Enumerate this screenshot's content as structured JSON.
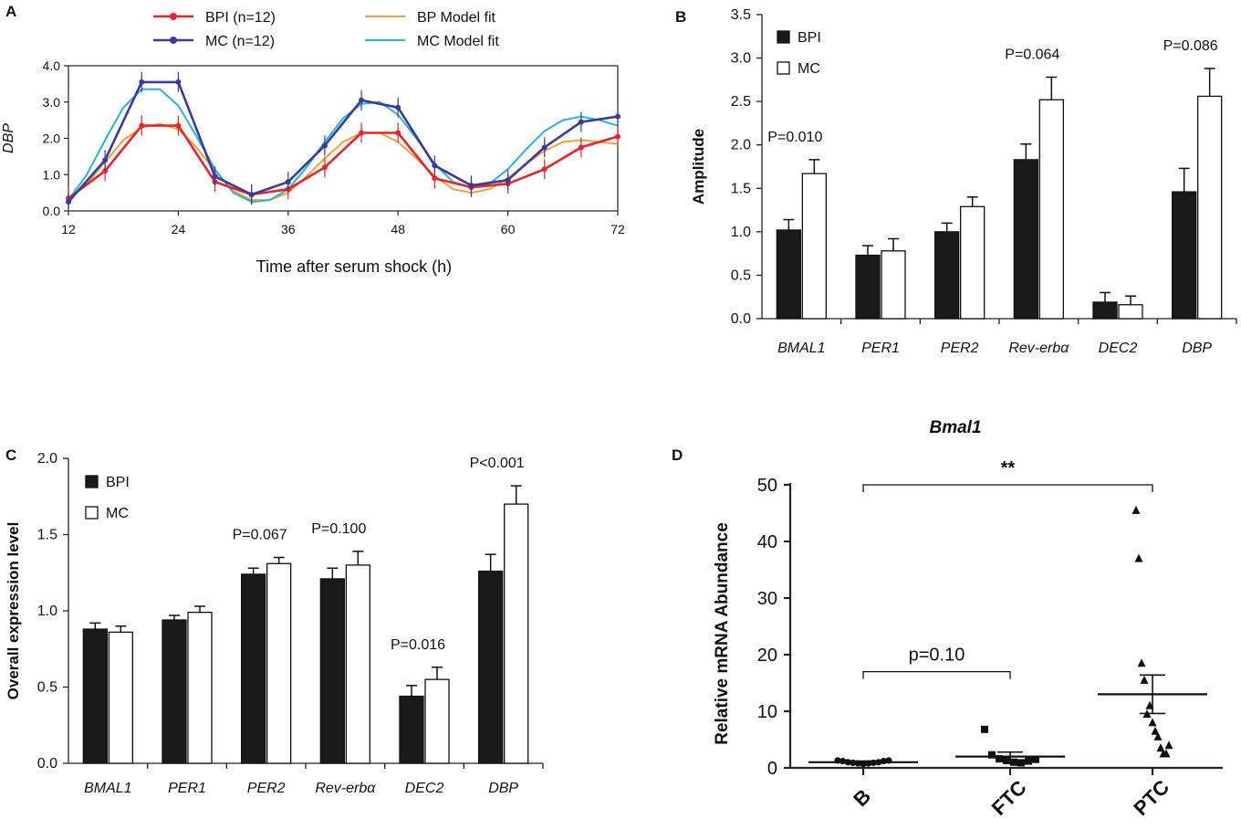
{
  "colors": {
    "bpi": "#e8242d",
    "mc": "#3a3b98",
    "bp_fit": "#f2a03a",
    "mc_fit": "#27b4dc",
    "bar_dark": "#1a1a1a",
    "bar_light": "#ffffff",
    "axis": "#222222"
  },
  "chart_data": [
    {
      "id": "A",
      "panel_label": "A",
      "type": "line",
      "ylabel": "DBP",
      "xlabel": "Time after serum shock (h)",
      "xlim": [
        12,
        72
      ],
      "ylim": [
        0,
        4
      ],
      "xticks": [
        12,
        24,
        36,
        48,
        60,
        72
      ],
      "yticks": [
        0,
        1,
        2,
        3,
        4
      ],
      "ytick_labels": [
        "0.0",
        "1.0",
        "2.0",
        "3.0",
        "4.0"
      ],
      "legend": [
        {
          "label": "BPI (n=12)",
          "style": "data",
          "color_key": "bpi"
        },
        {
          "label": "BP Model fit",
          "style": "fit",
          "color_key": "bp_fit"
        },
        {
          "label": "MC (n=12)",
          "style": "data",
          "color_key": "mc"
        },
        {
          "label": "MC Model fit",
          "style": "fit",
          "color_key": "mc_fit"
        }
      ],
      "series": [
        {
          "name": "BPI (n=12)",
          "color_key": "bpi",
          "kind": "data",
          "x": [
            12,
            16,
            20,
            24,
            28,
            32,
            36,
            40,
            44,
            48,
            52,
            56,
            60,
            64,
            68,
            72
          ],
          "y": [
            0.35,
            1.1,
            2.35,
            2.35,
            0.8,
            0.45,
            0.6,
            1.2,
            2.15,
            2.15,
            0.9,
            0.65,
            0.75,
            1.15,
            1.75,
            2.05
          ]
        },
        {
          "name": "MC (n=12)",
          "color_key": "mc",
          "kind": "data",
          "x": [
            12,
            16,
            20,
            24,
            28,
            32,
            36,
            40,
            44,
            48,
            52,
            56,
            60,
            64,
            68,
            72
          ],
          "y": [
            0.25,
            1.4,
            3.55,
            3.55,
            0.95,
            0.45,
            0.8,
            1.8,
            3.05,
            2.85,
            1.25,
            0.7,
            0.85,
            1.75,
            2.45,
            2.6
          ]
        },
        {
          "name": "BP Model fit",
          "color_key": "bp_fit",
          "kind": "fit",
          "x": [
            12,
            14,
            16,
            18,
            20,
            22,
            24,
            26,
            28,
            30,
            32,
            34,
            36,
            38,
            40,
            42,
            44,
            46,
            48,
            50,
            52,
            54,
            56,
            58,
            60,
            62,
            64,
            66,
            68,
            70,
            72
          ],
          "y": [
            0.3,
            0.75,
            1.35,
            1.95,
            2.3,
            2.4,
            2.25,
            1.75,
            1.1,
            0.55,
            0.3,
            0.3,
            0.5,
            0.95,
            1.45,
            1.9,
            2.15,
            2.15,
            1.9,
            1.45,
            0.95,
            0.6,
            0.5,
            0.6,
            0.9,
            1.3,
            1.65,
            1.9,
            1.95,
            1.9,
            1.85
          ]
        },
        {
          "name": "MC Model fit",
          "color_key": "mc_fit",
          "kind": "fit",
          "x": [
            12,
            14,
            16,
            18,
            20,
            22,
            24,
            26,
            28,
            30,
            32,
            34,
            36,
            38,
            40,
            42,
            44,
            46,
            48,
            50,
            52,
            54,
            56,
            58,
            60,
            62,
            64,
            66,
            68,
            70,
            72
          ],
          "y": [
            0.3,
            1.0,
            1.95,
            2.85,
            3.35,
            3.35,
            2.9,
            2.05,
            1.15,
            0.5,
            0.25,
            0.3,
            0.6,
            1.2,
            1.9,
            2.55,
            2.95,
            3.0,
            2.65,
            2.0,
            1.3,
            0.8,
            0.65,
            0.75,
            1.15,
            1.7,
            2.2,
            2.5,
            2.6,
            2.5,
            2.35
          ]
        }
      ]
    },
    {
      "id": "B",
      "panel_label": "B",
      "type": "bar",
      "ylabel": "Amplitude",
      "ylim": [
        0,
        3.5
      ],
      "yticks": [
        0,
        0.5,
        1,
        1.5,
        2,
        2.5,
        3,
        3.5
      ],
      "ytick_labels": [
        "0.0",
        "0.5",
        "1.0",
        "1.5",
        "2.0",
        "2.5",
        "3.0",
        "3.5"
      ],
      "categories": [
        "BMAL1",
        "PER1",
        "PER2",
        "Rev-erbα",
        "DEC2",
        "DBP"
      ],
      "series": [
        {
          "name": "BPI",
          "color_key": "bar_dark",
          "values": [
            1.02,
            0.73,
            1.0,
            1.83,
            0.19,
            1.46
          ],
          "errors": [
            0.12,
            0.11,
            0.1,
            0.18,
            0.11,
            0.27
          ]
        },
        {
          "name": "MC",
          "color_key": "bar_light",
          "values": [
            1.67,
            0.78,
            1.29,
            2.52,
            0.16,
            2.56
          ],
          "errors": [
            0.16,
            0.14,
            0.11,
            0.26,
            0.1,
            0.32
          ]
        }
      ],
      "annotations": [
        {
          "category_index": 0,
          "text": "P=0.010"
        },
        {
          "category_index": 3,
          "text": "P=0.064"
        },
        {
          "category_index": 5,
          "text": "P=0.086"
        }
      ]
    },
    {
      "id": "C",
      "panel_label": "C",
      "type": "bar",
      "ylabel": "Overall expression level",
      "ylim": [
        0,
        2
      ],
      "yticks": [
        0,
        0.5,
        1,
        1.5,
        2
      ],
      "ytick_labels": [
        "0.0",
        "0.5",
        "1.0",
        "1.5",
        "2.0"
      ],
      "categories": [
        "BMAL1",
        "PER1",
        "PER2",
        "Rev-erbα",
        "DEC2",
        "DBP"
      ],
      "series": [
        {
          "name": "BPI",
          "color_key": "bar_dark",
          "values": [
            0.88,
            0.94,
            1.24,
            1.21,
            0.44,
            1.26
          ],
          "errors": [
            0.04,
            0.03,
            0.04,
            0.07,
            0.07,
            0.11
          ]
        },
        {
          "name": "MC",
          "color_key": "bar_light",
          "values": [
            0.86,
            0.99,
            1.31,
            1.3,
            0.55,
            1.7
          ],
          "errors": [
            0.04,
            0.04,
            0.04,
            0.09,
            0.08,
            0.12
          ]
        }
      ],
      "annotations": [
        {
          "category_index": 2,
          "text": "P=0.067"
        },
        {
          "category_index": 3,
          "text": "P=0.100"
        },
        {
          "category_index": 4,
          "text": "P=0.016"
        },
        {
          "category_index": 5,
          "text": "P<0.001"
        }
      ]
    },
    {
      "id": "D",
      "panel_label": "D",
      "type": "scatter",
      "title": "Bmal1",
      "ylabel": "Relative mRNA Abundance",
      "ylim": [
        0,
        50
      ],
      "yticks": [
        0,
        10,
        20,
        30,
        40,
        50
      ],
      "ytick_labels": [
        "0",
        "10",
        "20",
        "30",
        "40",
        "50"
      ],
      "categories": [
        "B",
        "FTC",
        "PTC"
      ],
      "groups": [
        {
          "name": "B",
          "marker": "circle",
          "mean": 1.0,
          "sem": 0.2,
          "points": [
            1.3,
            1.2,
            1.0,
            0.9,
            0.8,
            0.7,
            0.8,
            0.9,
            1.0,
            1.2,
            1.3
          ]
        },
        {
          "name": "FTC",
          "marker": "square",
          "mean": 2.0,
          "sem": 0.8,
          "points": [
            6.8,
            2.3,
            1.6,
            1.3,
            1.0,
            0.9,
            1.2,
            1.5
          ]
        },
        {
          "name": "PTC",
          "marker": "triangle",
          "mean": 13.0,
          "sem": 3.4,
          "points": [
            45.5,
            37.0,
            18.5,
            15.5,
            9.5,
            11.0,
            8.0,
            6.5,
            5.5,
            3.5,
            2.5,
            2.5,
            4.0
          ]
        }
      ],
      "brackets": [
        {
          "from": 0,
          "to": 2,
          "value": 50,
          "text": "**"
        },
        {
          "from": 0,
          "to": 1,
          "value": 17,
          "text": "p=0.10"
        }
      ]
    }
  ]
}
